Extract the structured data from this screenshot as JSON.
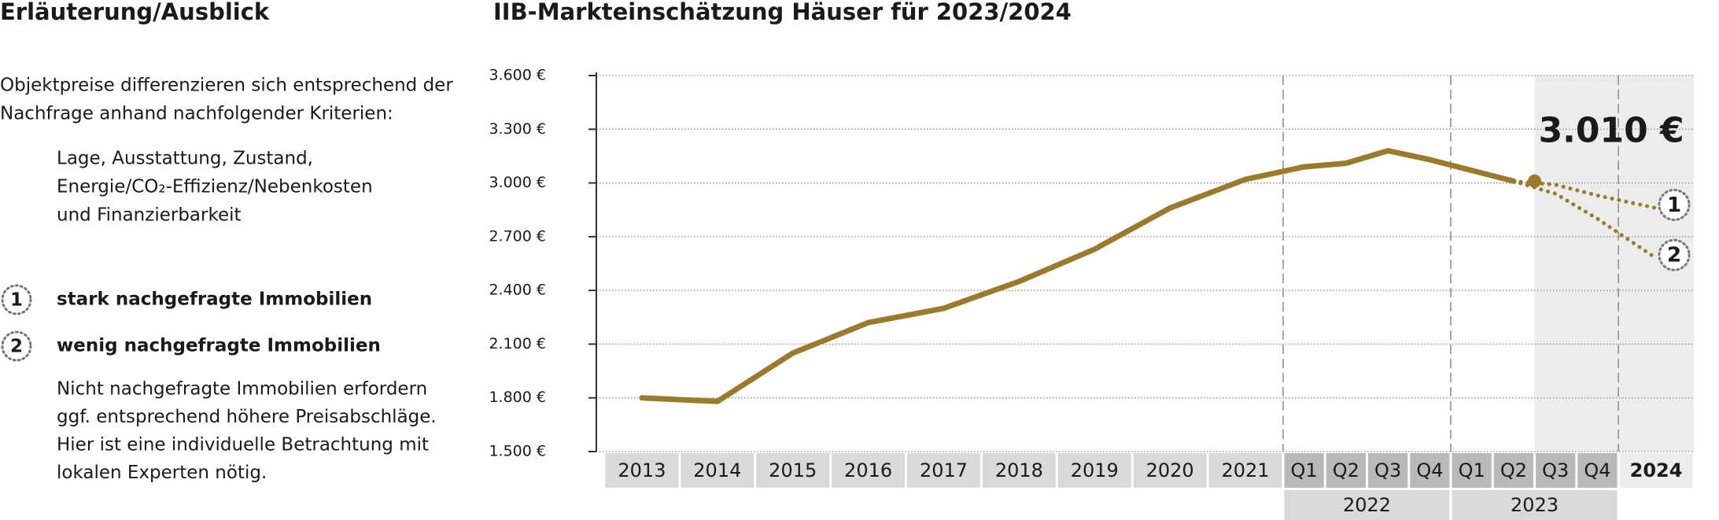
{
  "panel": {
    "title": "Erläuterung/Ausblick",
    "intro": [
      "Objektpreise differenzieren sich entsprechend der",
      "Nachfrage anhand nachfolgender Kriterien:"
    ],
    "criteria": [
      "Lage, Ausstattung, Zustand,",
      "Energie/CO₂-Effizienz/Nebenkosten",
      "und Finanzierbarkeit"
    ],
    "note": [
      "Nicht nachgefragte Immobilien erfordern",
      "ggf. entsprechend höhere Preisabschläge.",
      "Hier ist eine individuelle Betrachtung mit",
      "lokalen Experten nötig."
    ]
  },
  "chart_data": {
    "type": "line",
    "title": "IIB-Markteinschätzung Häuser für 2023/2024",
    "categories": [
      "2013",
      "2014",
      "2015",
      "2016",
      "2017",
      "2018",
      "2019",
      "2020",
      "2021",
      "Q1",
      "Q2",
      "Q3",
      "Q4",
      "Q1",
      "Q2",
      "Q3",
      "Q4",
      "2024"
    ],
    "category_groups": [
      "2022",
      "2023"
    ],
    "series": [
      {
        "color": "#9a7b2c",
        "values": [
          1800,
          1780,
          2050,
          2220,
          2300,
          2450,
          2630,
          2860,
          3020,
          3090,
          3110,
          3180,
          3130,
          3070,
          3010,
          null,
          null,
          null
        ],
        "value_labels": [
          null,
          null,
          null,
          null,
          null,
          null,
          null,
          null,
          null,
          null,
          null,
          null,
          null,
          null,
          "3.010 €",
          null,
          null,
          null
        ]
      },
      {
        "name": "stark nachgefragte Immobilien",
        "marker": "1",
        "color": "#9a7b2c",
        "values": [
          null,
          null,
          null,
          null,
          null,
          null,
          null,
          null,
          null,
          null,
          null,
          null,
          null,
          null,
          3010,
          2990,
          2930,
          2860
        ]
      },
      {
        "name": "wenig nachgefragte Immobilien",
        "marker": "2",
        "color": "#9a7b2c",
        "values": [
          null,
          null,
          null,
          null,
          null,
          null,
          null,
          null,
          null,
          null,
          null,
          null,
          null,
          null,
          3010,
          2940,
          2800,
          2580
        ]
      }
    ],
    "ylim": [
      1500,
      3600
    ],
    "yticks": [
      {
        "value": 1500,
        "label": "1.500 €"
      },
      {
        "value": 1800,
        "label": "1.800 €"
      },
      {
        "value": 2100,
        "label": "2.100 €"
      },
      {
        "value": 2400,
        "label": "2.400 €"
      },
      {
        "value": 2700,
        "label": "2.700 €"
      },
      {
        "value": 3000,
        "label": "3.000 €"
      },
      {
        "value": 3300,
        "label": "3.300 €"
      },
      {
        "value": 3600,
        "label": "3.600 €"
      }
    ],
    "grid": true
  }
}
